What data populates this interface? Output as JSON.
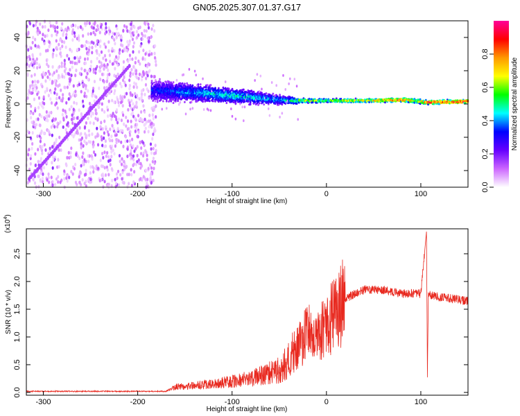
{
  "chart_data": [
    {
      "type": "heatmap",
      "title": "GN05.2025.307.01.37.G17",
      "xlabel": "Height of straight line (km)",
      "ylabel": "Frequency (Hz)",
      "xlim": [
        -318,
        150
      ],
      "ylim": [
        -50,
        50
      ],
      "xticks": [
        -300,
        -200,
        -100,
        0,
        100
      ],
      "yticks": [
        -40,
        -20,
        0,
        20,
        40
      ],
      "colorbar": {
        "label": "Normalized spectral amplitude",
        "range": [
          0,
          1
        ],
        "ticks": [
          0.0,
          0.2,
          0.4,
          0.6,
          0.8
        ],
        "colors": [
          "#ffffff",
          "#cc66ff",
          "#6600ff",
          "#0000ff",
          "#00ffff",
          "#00ff00",
          "#ffff00",
          "#ff9900",
          "#ff0000",
          "#ff0099"
        ]
      },
      "tone": [
        {
          "x": -180,
          "f": 8,
          "spread": 8,
          "amp": 0.35
        },
        {
          "x": -150,
          "f": 7,
          "spread": 7,
          "amp": 0.42
        },
        {
          "x": -120,
          "f": 6,
          "spread": 6,
          "amp": 0.48
        },
        {
          "x": -100,
          "f": 5,
          "spread": 5.5,
          "amp": 0.5
        },
        {
          "x": -80,
          "f": 4,
          "spread": 5,
          "amp": 0.48
        },
        {
          "x": -60,
          "f": 3,
          "spread": 4,
          "amp": 0.45
        },
        {
          "x": -40,
          "f": 2,
          "spread": 3,
          "amp": 0.5
        },
        {
          "x": -20,
          "f": 2,
          "spread": 1.6,
          "amp": 0.7
        },
        {
          "x": 0,
          "f": 2,
          "spread": 1.5,
          "amp": 0.6
        },
        {
          "x": 20,
          "f": 2,
          "spread": 1.5,
          "amp": 0.7
        },
        {
          "x": 50,
          "f": 2,
          "spread": 1.5,
          "amp": 0.8
        },
        {
          "x": 80,
          "f": 2.5,
          "spread": 1.5,
          "amp": 0.9
        },
        {
          "x": 95,
          "f": 2,
          "spread": 2,
          "amp": 0.7
        },
        {
          "x": 105,
          "f": 1,
          "spread": 1.5,
          "amp": 0.95
        },
        {
          "x": 150,
          "f": 1.5,
          "spread": 1.5,
          "amp": 0.95
        }
      ]
    },
    {
      "type": "line",
      "xlabel": "Height of straight line (km)",
      "ylabel": "SNR (10 * v/v)",
      "y_scale_label": "(x10",
      "y_scale_exp": "4",
      "xlim": [
        -318,
        150
      ],
      "ylim": [
        -0.05,
        2.95
      ],
      "xticks": [
        -300,
        -200,
        -100,
        0,
        100
      ],
      "yticks": [
        0.0,
        0.5,
        1.0,
        1.5,
        2.0,
        2.5
      ],
      "series": [
        {
          "color": "#e8281e",
          "x": [
            -318,
            -170,
            -160,
            -120,
            -80,
            -50,
            -30,
            -20,
            -10,
            0,
            10,
            20,
            40,
            60,
            80,
            100,
            106,
            107,
            108,
            110,
            120,
            150
          ],
          "y": [
            0.02,
            0.02,
            0.1,
            0.15,
            0.25,
            0.4,
            0.8,
            1.1,
            1.0,
            1.2,
            1.45,
            1.7,
            1.85,
            1.85,
            1.78,
            1.78,
            2.9,
            0.3,
            1.75,
            1.75,
            1.72,
            1.65
          ]
        }
      ]
    }
  ]
}
